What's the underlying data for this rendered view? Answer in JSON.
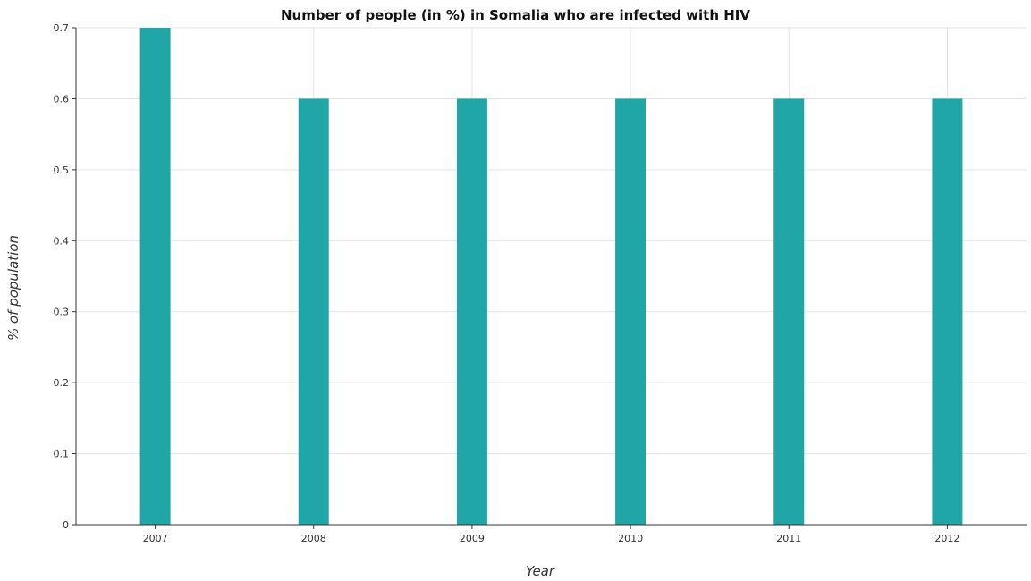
{
  "chart_data": {
    "type": "bar",
    "title": "Number of people (in %) in Somalia who are infected with HIV",
    "xlabel": "Year",
    "ylabel": "% of population",
    "categories": [
      "2007",
      "2008",
      "2009",
      "2010",
      "2011",
      "2012"
    ],
    "values": [
      0.7,
      0.6,
      0.6,
      0.6,
      0.6,
      0.6
    ],
    "ylim": [
      0,
      0.7
    ],
    "yticks": [
      "0",
      "0.1",
      "0.2",
      "0.3",
      "0.4",
      "0.5",
      "0.6",
      "0.7"
    ],
    "grid": true,
    "bar_color": "#20a6a6"
  }
}
